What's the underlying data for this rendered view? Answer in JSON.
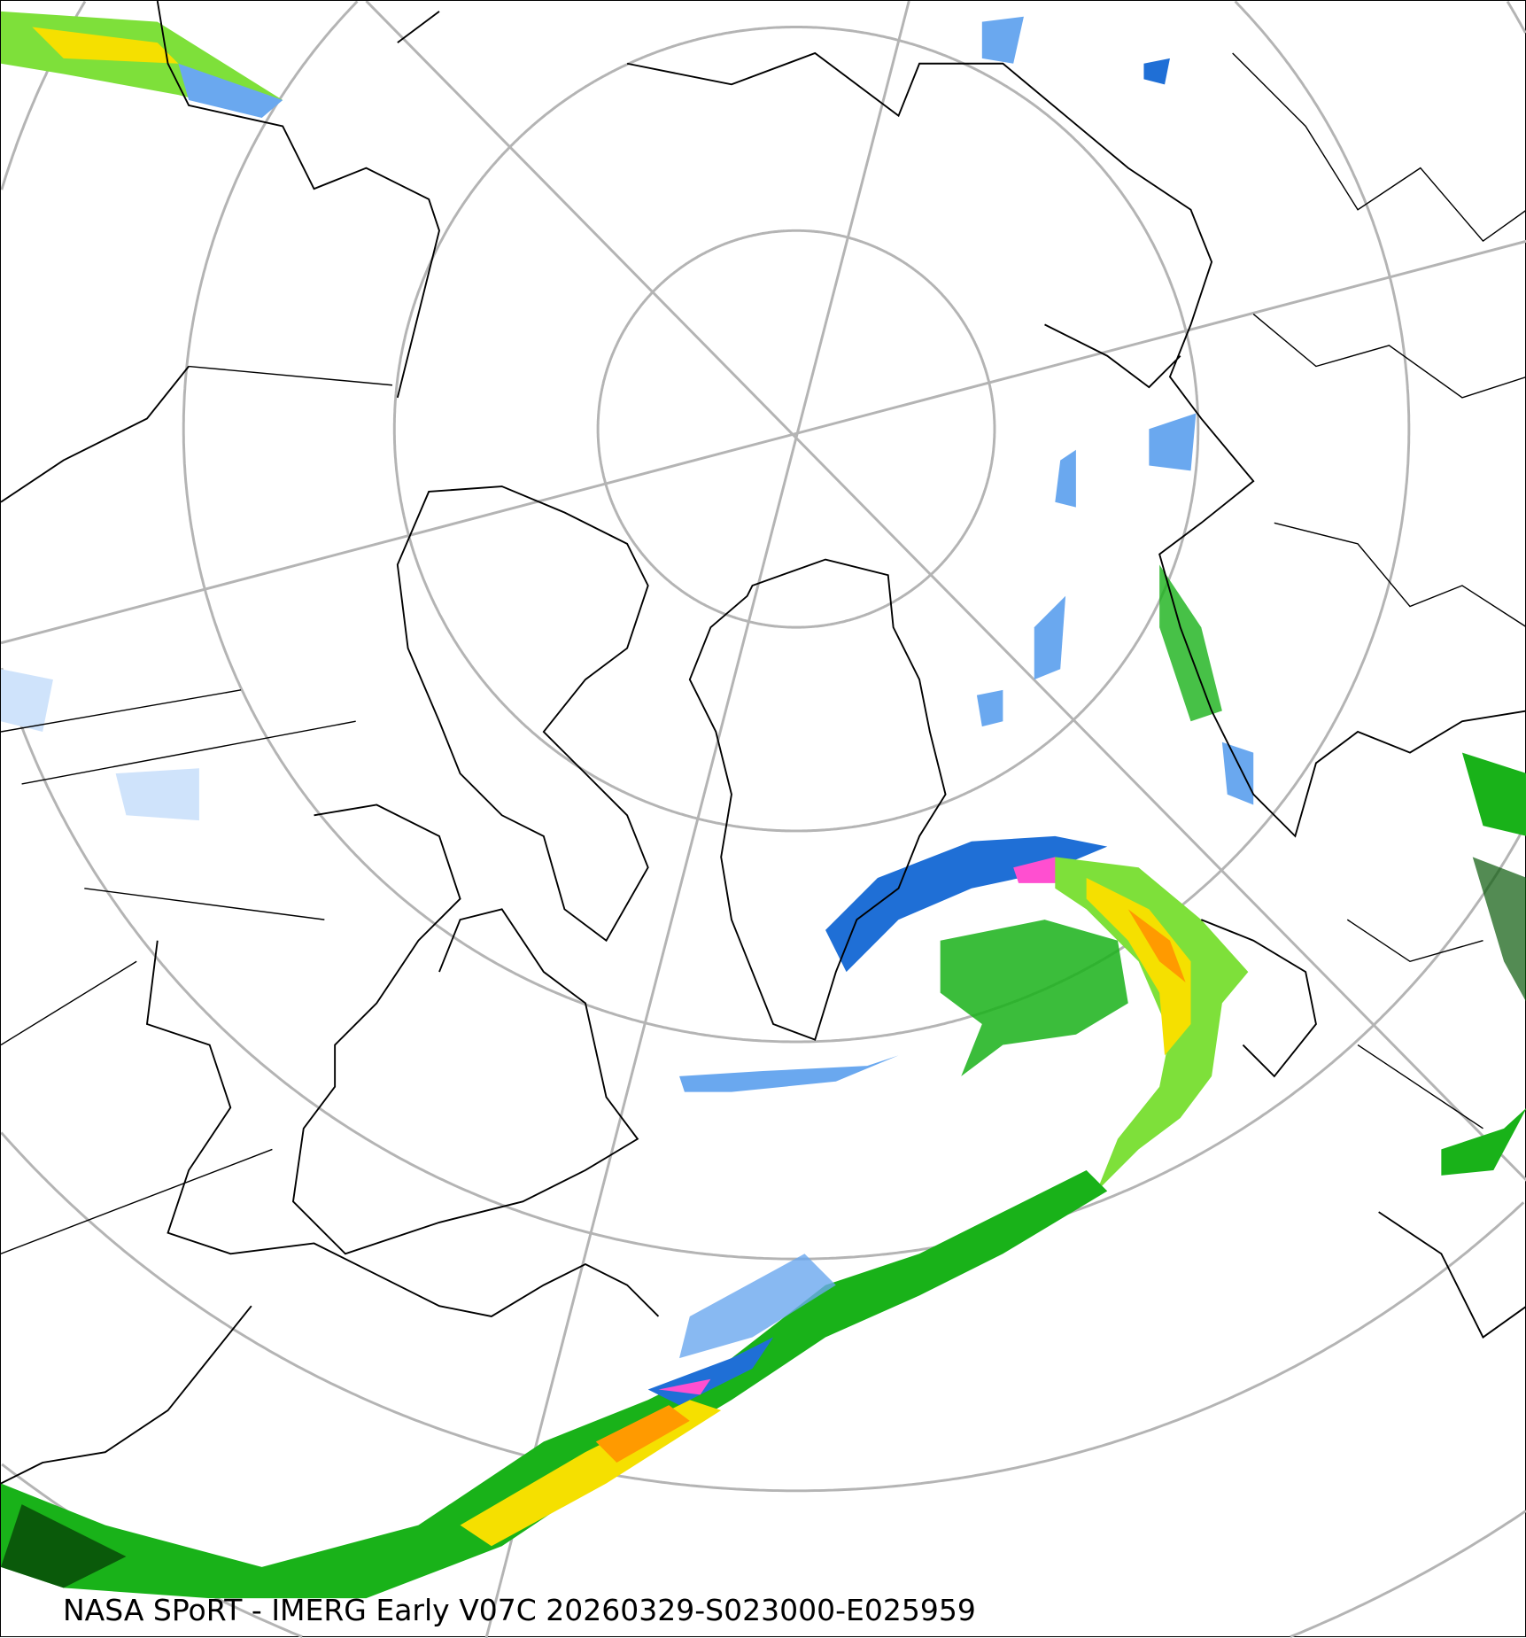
{
  "caption": "NASA SPoRT - IMERG Early V07C 20260329-S023000-E025959",
  "map": {
    "projection": "north-polar-stereographic",
    "graticule_color": "#b4b4b4",
    "coastline_color": "#000000",
    "precip_colors": {
      "very_light": "#cfe3fb",
      "light_blue": "#6aa8ef",
      "blue": "#1f6fd6",
      "dark_green": "#0a5a0a",
      "green": "#19b219",
      "light_green": "#7ee03a",
      "yellow_green": "#c8f000",
      "yellow": "#f5e000",
      "orange": "#ff9a00",
      "magenta": "#ff4fd0"
    }
  }
}
